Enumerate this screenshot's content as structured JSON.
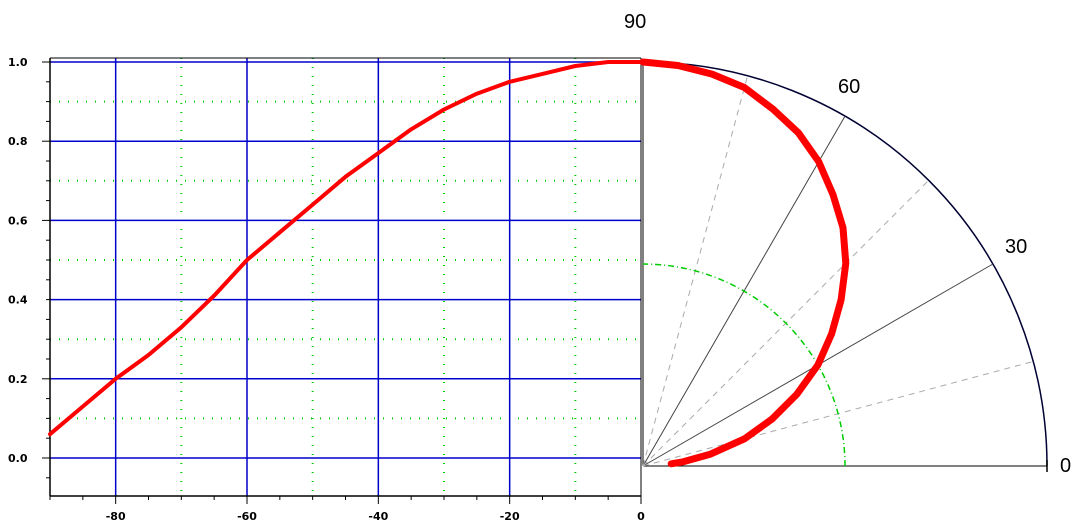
{
  "chart_data": [
    {
      "type": "line",
      "title": "",
      "xlabel": "",
      "ylabel": "",
      "xlim": [
        -90,
        0
      ],
      "ylim": [
        -0.05,
        1.0
      ],
      "x_ticks": [
        "-80",
        "-60",
        "-40",
        "-20",
        "0"
      ],
      "y_ticks": [
        "0.0",
        "0.2",
        "0.4",
        "0.6",
        "0.8",
        "1.0"
      ],
      "grid": "major solid blue, minor dotted green",
      "colors": {
        "line": "#ff0000",
        "major_grid": "#0000cc",
        "minor_grid": "#00cc00"
      },
      "series": [
        {
          "x": [
            -90,
            -85,
            -80,
            -75,
            -70,
            -65,
            -60,
            -55,
            -50,
            -45,
            -40,
            -35,
            -30,
            -25,
            -20,
            -15,
            -10,
            -5,
            0
          ],
          "values": [
            0.06,
            0.13,
            0.2,
            0.26,
            0.33,
            0.41,
            0.5,
            0.57,
            0.64,
            0.71,
            0.77,
            0.83,
            0.88,
            0.92,
            0.95,
            0.97,
            0.99,
            1.0,
            1.0
          ]
        }
      ]
    },
    {
      "type": "polar",
      "title": "",
      "angle_labels": [
        "90",
        "60",
        "30",
        "0"
      ],
      "angle_range": [
        0,
        90
      ],
      "radius_range": [
        0,
        1
      ],
      "colors": {
        "curve": "#ff0000",
        "spokes": "#444444",
        "rim": "#000033",
        "minor_ring": "#00cc00"
      },
      "series": [
        {
          "theta_deg": [
            4.4,
            6,
            10,
            15,
            20,
            25,
            30,
            35,
            40,
            45,
            50,
            55,
            60,
            65,
            70,
            75,
            80,
            85,
            90
          ],
          "r": [
            0.07,
            0.1,
            0.17,
            0.26,
            0.34,
            0.42,
            0.5,
            0.57,
            0.64,
            0.71,
            0.77,
            0.82,
            0.87,
            0.91,
            0.94,
            0.97,
            0.985,
            0.995,
            1.0
          ]
        }
      ]
    }
  ]
}
